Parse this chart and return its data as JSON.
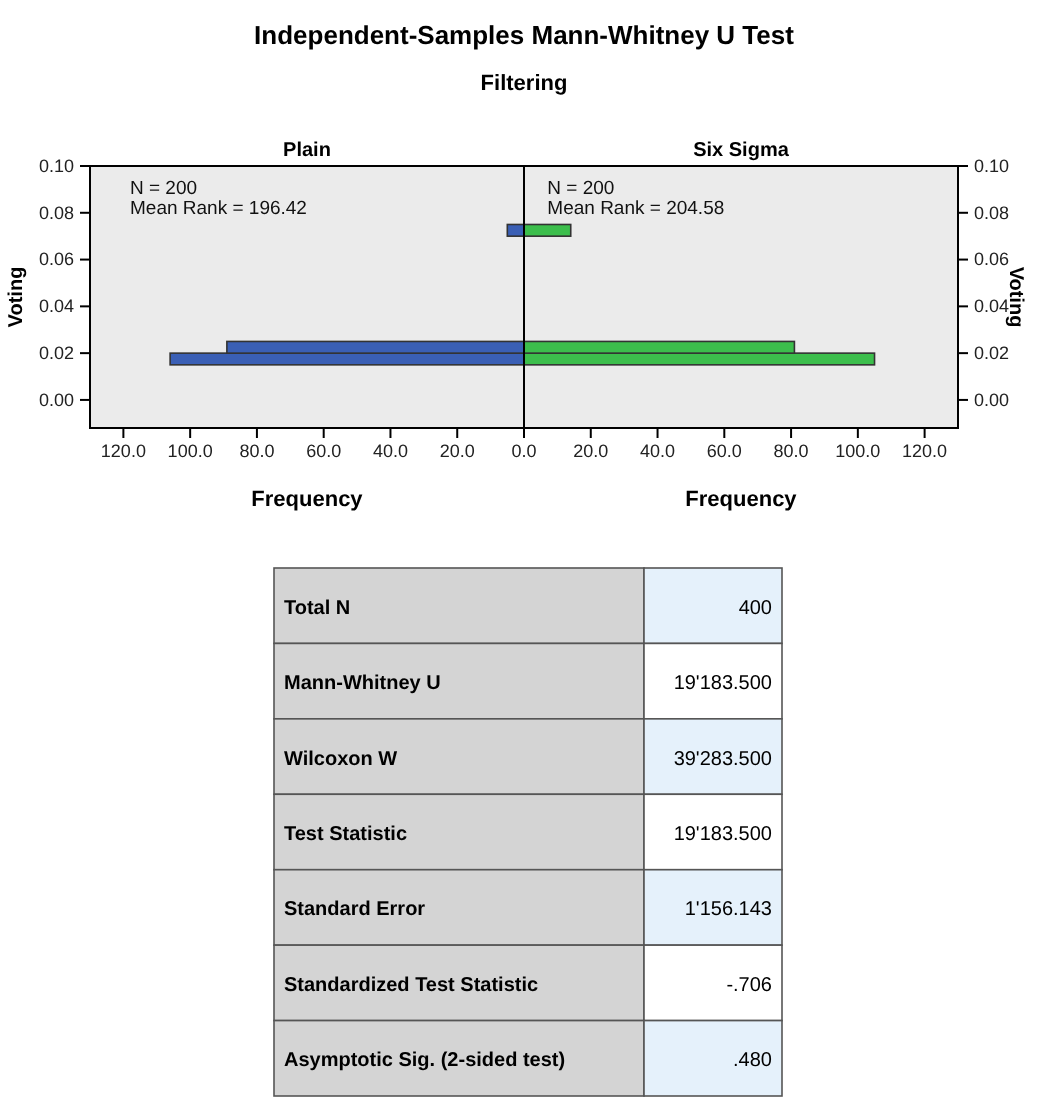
{
  "chart_data": [
    {
      "type": "histogram",
      "title": "Independent-Samples Mann-Whitney U Test",
      "subtitle": "Filtering",
      "orientation": "horizontal",
      "xlabel": "Frequency",
      "ylabel": "Voting",
      "xlim": [
        130,
        0
      ],
      "xticks": [
        {
          "value": 120,
          "label": "120.0"
        },
        {
          "value": 100,
          "label": "100.0"
        },
        {
          "value": 80,
          "label": "80.0"
        },
        {
          "value": 60,
          "label": "60.0"
        },
        {
          "value": 40,
          "label": "40.0"
        },
        {
          "value": 20,
          "label": "20.0"
        },
        {
          "value": 0,
          "label": "0.0"
        }
      ],
      "ylim": [
        -0.012,
        0.1
      ],
      "yticks": [
        {
          "value": 0,
          "label": "0.00"
        },
        {
          "value": 0.02,
          "label": "0.02"
        },
        {
          "value": 0.04,
          "label": "0.04"
        },
        {
          "value": 0.06,
          "label": "0.06"
        },
        {
          "value": 0.08,
          "label": "0.08"
        },
        {
          "value": 0.1,
          "label": "0.10"
        }
      ],
      "bins": [
        0.015,
        0.02,
        0.025,
        0.07,
        0.075
      ],
      "series": [
        {
          "name": "Plain",
          "color": "#3a5fb5",
          "values": [
            106,
            89,
            null,
            5
          ]
        }
      ],
      "annotations": [
        "N = 200",
        "Mean Rank = 196.42"
      ],
      "grid": false
    },
    {
      "type": "histogram",
      "orientation": "horizontal",
      "xlabel": "Frequency",
      "ylabel": "Voting",
      "xlim": [
        0,
        130
      ],
      "xticks": [
        {
          "value": 0,
          "label": null
        },
        {
          "value": 20,
          "label": "20.0"
        },
        {
          "value": 40,
          "label": "40.0"
        },
        {
          "value": 60,
          "label": "60.0"
        },
        {
          "value": 80,
          "label": "80.0"
        },
        {
          "value": 100,
          "label": "100.0"
        },
        {
          "value": 120,
          "label": "120.0"
        }
      ],
      "ylim": [
        -0.012,
        0.1
      ],
      "yticks": [
        {
          "value": 0,
          "label": "0.00"
        },
        {
          "value": 0.02,
          "label": "0.02"
        },
        {
          "value": 0.04,
          "label": "0.04"
        },
        {
          "value": 0.06,
          "label": "0.06"
        },
        {
          "value": 0.08,
          "label": "0.08"
        },
        {
          "value": 0.1,
          "label": "0.10"
        }
      ],
      "bins": [
        0.015,
        0.02,
        0.025,
        0.07,
        0.075
      ],
      "series": [
        {
          "name": "Six Sigma",
          "color": "#3cbe4c",
          "values": [
            105,
            81,
            null,
            14
          ]
        }
      ],
      "annotations": [
        "N = 200",
        "Mean Rank = 204.58"
      ],
      "grid": false
    },
    {
      "type": "other",
      "categories": [
        "Total N",
        "Mann-Whitney U",
        "Wilcoxon W",
        "Test Statistic",
        "Standard Error",
        "Standardized Test Statistic",
        "Asymptotic Sig. (2-sided test)"
      ],
      "value_labels": [
        "400",
        "19'183.500",
        "39'283.500",
        "19'183.500",
        "1'156.143",
        "-.706",
        ".480"
      ]
    }
  ]
}
